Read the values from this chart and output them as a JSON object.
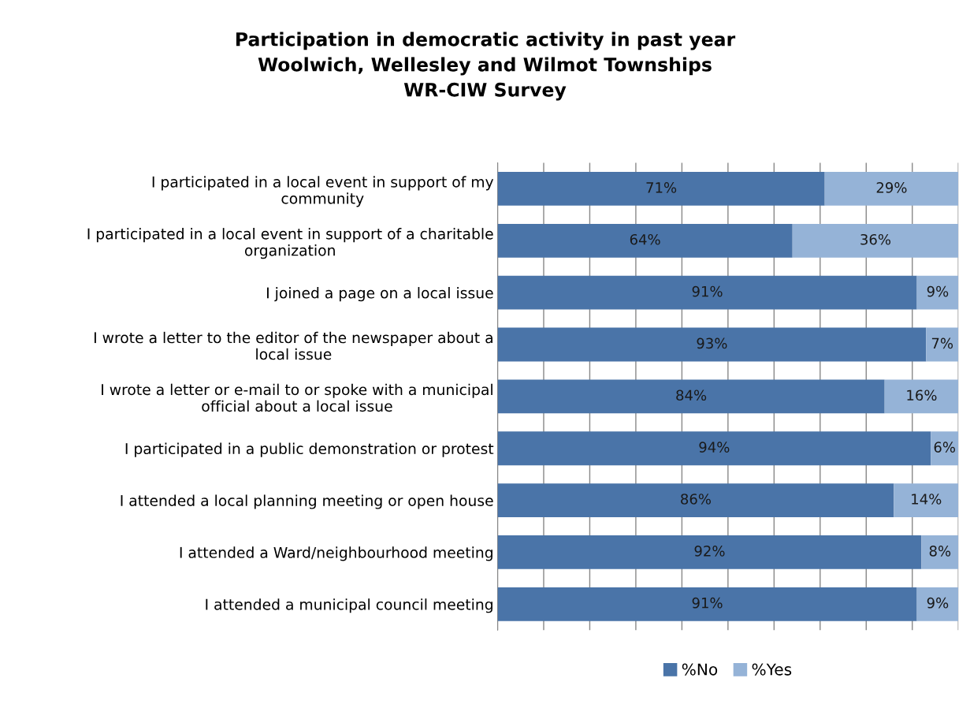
{
  "chart_data": {
    "type": "bar",
    "orientation": "horizontal",
    "stacked": true,
    "title": "Participation in democratic activity in past year\nWoolwich, Wellesley and Wilmot Townships\nWR-CIW Survey",
    "categories": [
      "I participated in a local event in support of my community",
      "I participated in a local event in support of a charitable organization",
      "I joined a page on a local issue",
      "I wrote a letter to the editor of the newspaper about a local issue",
      "I wrote a letter or e-mail to or spoke with a municipal official about a local issue",
      "I participated in a public demonstration or protest",
      "I attended a local planning meeting or open house",
      "I attended a Ward/neighbourhood meeting",
      "I attended a municipal council meeting"
    ],
    "series": [
      {
        "name": "%No",
        "color": "#4a74a8",
        "values": [
          71,
          64,
          91,
          93,
          84,
          94,
          86,
          92,
          91
        ],
        "value_labels": [
          "71%",
          "64%",
          "91%",
          "93%",
          "84%",
          "94%",
          "86%",
          "92%",
          "91%"
        ]
      },
      {
        "name": "%Yes",
        "color": "#95b3d7",
        "values": [
          29,
          36,
          9,
          7,
          16,
          6,
          14,
          8,
          9
        ],
        "value_labels": [
          "29%",
          "36%",
          "9%",
          "7%",
          "16%",
          "6%",
          "14%",
          "8%",
          "9%"
        ]
      }
    ],
    "grid": "x",
    "legend": "bottom",
    "tick_labels": "y"
  }
}
